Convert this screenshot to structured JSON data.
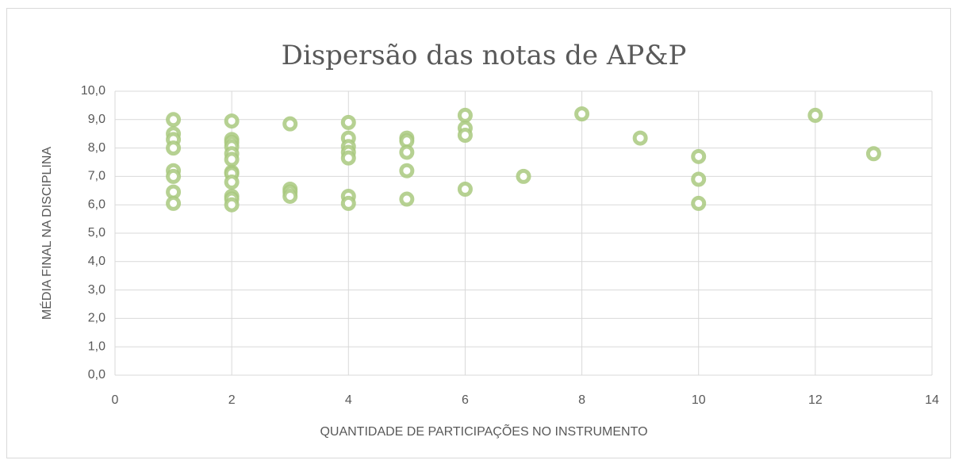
{
  "chart_data": {
    "type": "scatter",
    "title": "Dispersão das notas de AP&P",
    "x_label": "QUANTIDADE DE PARTICIPAÇÕES NO INSTRUMENTO",
    "y_label": "MÉDIA FINAL NA DISCIPLINA",
    "x": [
      1,
      1,
      1,
      1,
      1,
      1,
      1,
      1,
      2,
      2,
      2,
      2,
      2,
      2,
      2,
      2,
      2,
      2,
      2,
      2,
      3,
      3,
      3,
      3,
      4,
      4,
      4,
      4,
      4,
      4,
      4,
      5,
      5,
      5,
      5,
      5,
      6,
      6,
      6,
      6,
      7,
      8,
      9,
      10,
      10,
      10,
      12,
      13
    ],
    "values": [
      9.0,
      8.5,
      8.3,
      8.0,
      7.2,
      7.0,
      6.45,
      6.05,
      8.95,
      8.3,
      8.2,
      8.05,
      7.8,
      7.6,
      7.15,
      7.1,
      6.8,
      6.3,
      6.2,
      6.0,
      8.85,
      6.55,
      6.45,
      6.3,
      8.9,
      8.35,
      8.05,
      7.85,
      7.65,
      6.3,
      6.05,
      8.35,
      8.25,
      7.85,
      7.2,
      6.2,
      9.15,
      8.7,
      8.45,
      6.55,
      7.0,
      9.2,
      8.35,
      7.7,
      6.9,
      6.05,
      9.15,
      7.8
    ],
    "color": "#a9c97f",
    "xlim": [
      0,
      14
    ],
    "xticks": [
      0,
      2,
      4,
      6,
      8,
      10,
      12,
      14
    ],
    "ylim": [
      0,
      10
    ],
    "yticks": [
      {
        "value": 0,
        "label": "0,0"
      },
      {
        "value": 1,
        "label": "1,0"
      },
      {
        "value": 2,
        "label": "2,0"
      },
      {
        "value": 3,
        "label": "3,0"
      },
      {
        "value": 4,
        "label": "4,0"
      },
      {
        "value": 5,
        "label": "5,0"
      },
      {
        "value": 6,
        "label": "6,0"
      },
      {
        "value": 7,
        "label": "7,0"
      },
      {
        "value": 8,
        "label": "8,0"
      },
      {
        "value": 9,
        "label": "9,0"
      },
      {
        "value": 10,
        "label": "10,0"
      }
    ],
    "grid": true
  }
}
